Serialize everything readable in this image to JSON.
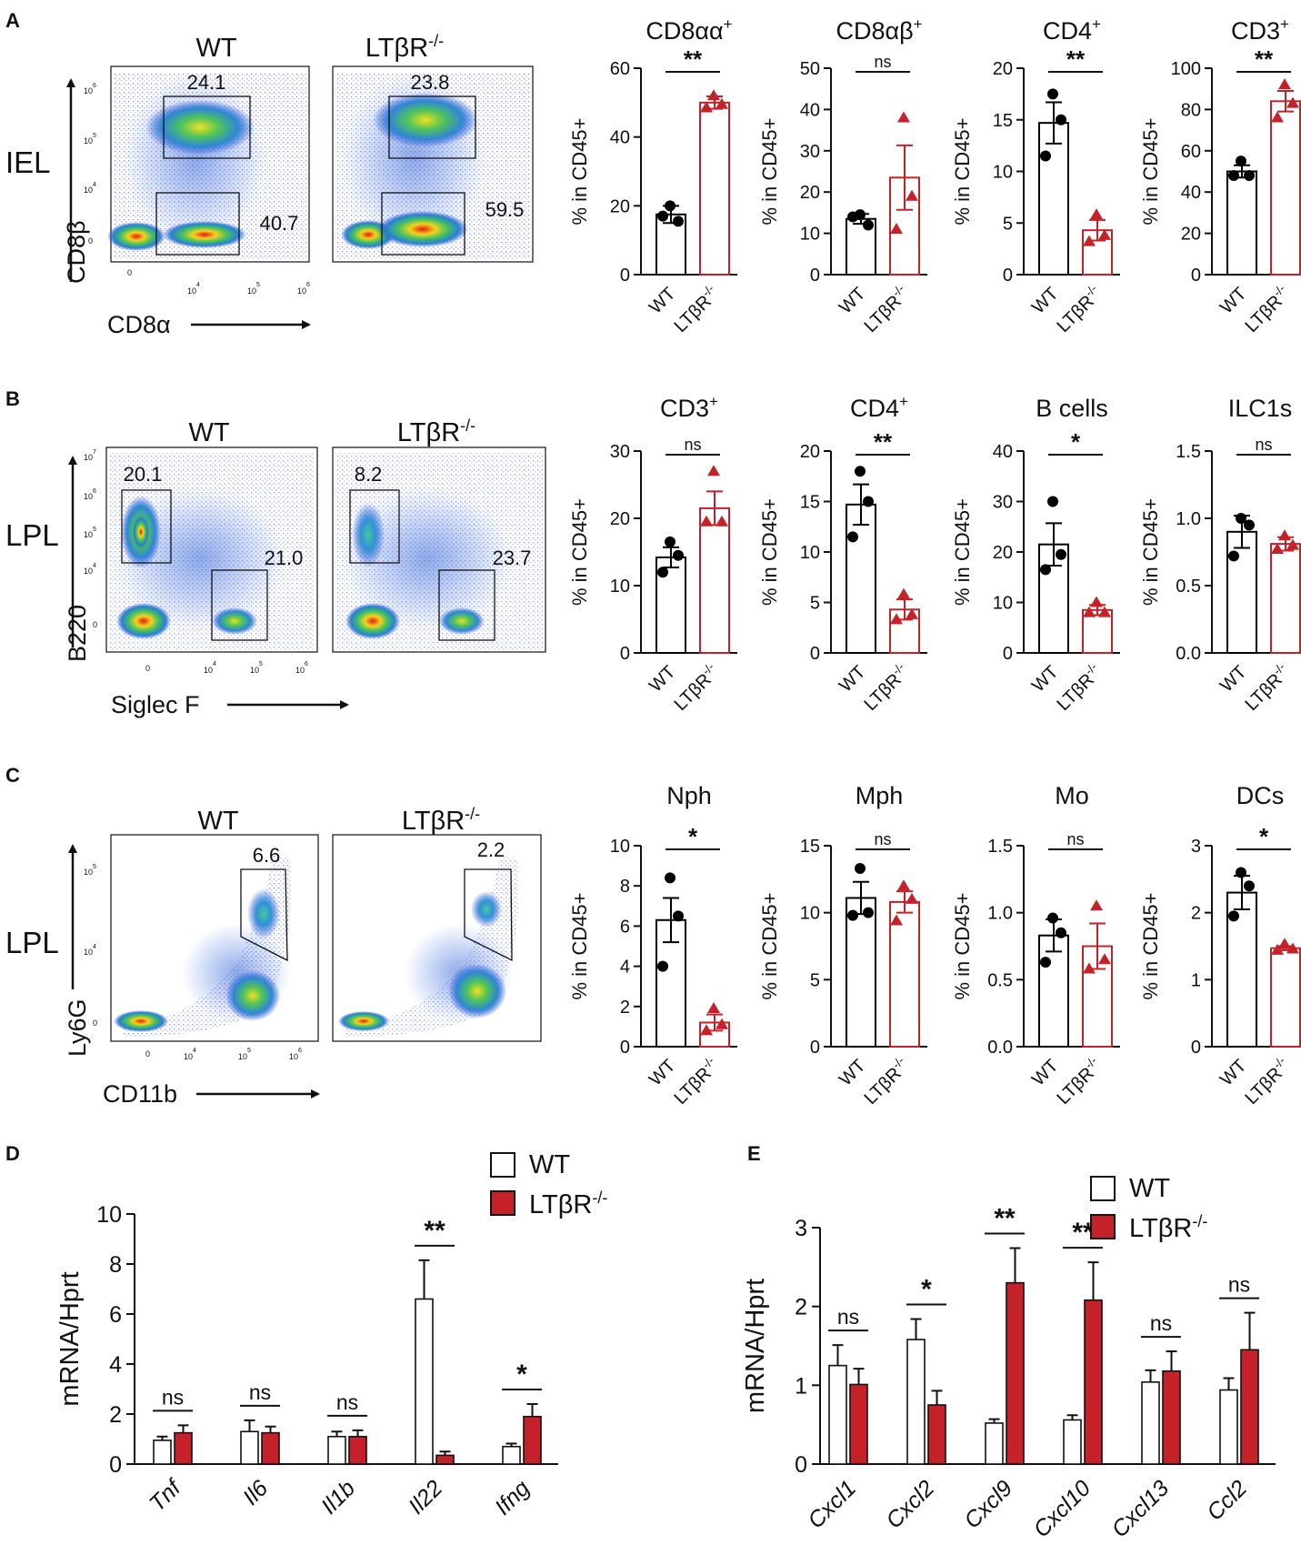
{
  "labels": {
    "wt": "WT",
    "ko": "LTβR",
    "ko_sup": "-/-",
    "pct_ylabel": "% in CD45+",
    "mrna_ylabel": "mRNA/Hprt"
  },
  "colors": {
    "wt": "#000000",
    "ko": "#c42129",
    "ko_fill": "#c42129"
  },
  "panels": [
    {
      "letter": "A",
      "tissue": "IEL",
      "xaxis": "CD8α",
      "yaxis": "CD8β",
      "gates": [
        {
          "sample": "WT",
          "values": [
            "24.1",
            "40.7"
          ]
        },
        {
          "sample": "LTβR-/-",
          "values": [
            "23.8",
            "59.5"
          ]
        }
      ],
      "ticks_x": [
        "0",
        "10",
        "10",
        "10"
      ],
      "ticks_x_exp": [
        "",
        "4",
        "5",
        "6"
      ],
      "ticks_y": [
        "0",
        "10",
        "10",
        "10"
      ],
      "ticks_y_exp": [
        "",
        "4",
        "5",
        "6"
      ]
    },
    {
      "letter": "B",
      "tissue": "LPL",
      "xaxis": "Siglec F",
      "yaxis": "B220",
      "gates": [
        {
          "sample": "WT",
          "values": [
            "20.1",
            "21.0"
          ]
        },
        {
          "sample": "LTβR-/-",
          "values": [
            "8.2",
            "23.7"
          ]
        }
      ],
      "ticks_x": [
        "0",
        "10",
        "10",
        "10"
      ],
      "ticks_x_exp": [
        "",
        "4",
        "5",
        "6"
      ],
      "ticks_y": [
        "0",
        "10",
        "10",
        "10",
        "10"
      ],
      "ticks_y_exp": [
        "",
        "4",
        "5",
        "6",
        "7"
      ]
    },
    {
      "letter": "C",
      "tissue": "LPL",
      "xaxis": "CD11b",
      "yaxis": "Ly6G",
      "gates": [
        {
          "sample": "WT",
          "values": [
            "6.6"
          ]
        },
        {
          "sample": "LTβR-/-",
          "values": [
            "2.2"
          ]
        }
      ],
      "ticks_x": [
        "0",
        "10",
        "10",
        "10"
      ],
      "ticks_x_exp": [
        "",
        "4",
        "5",
        "6"
      ],
      "ticks_y": [
        "0",
        "10",
        "10"
      ],
      "ticks_y_exp": [
        "",
        "4",
        "5"
      ]
    },
    {
      "letter": "D"
    },
    {
      "letter": "E"
    }
  ],
  "chart_data": [
    {
      "type": "scatter",
      "panel": "A",
      "title": "CD8αα",
      "title_sup": "+",
      "ylabel": "% in CD45+",
      "ylim": [
        0,
        60
      ],
      "yticks": [
        0,
        20,
        40,
        60
      ],
      "sig": "**",
      "groups": [
        {
          "name": "WT",
          "mean": 17.5,
          "sem": 2.5,
          "points": [
            20,
            15.5,
            17
          ]
        },
        {
          "name": "LTβR-/-",
          "mean": 50,
          "sem": 1.8,
          "points": [
            52,
            49.5,
            48.5
          ]
        }
      ]
    },
    {
      "type": "scatter",
      "panel": "A",
      "title": "CD8αβ",
      "title_sup": "+",
      "ylabel": "% in CD45+",
      "ylim": [
        0,
        50
      ],
      "yticks": [
        0,
        10,
        20,
        30,
        40,
        50
      ],
      "sig": "ns",
      "groups": [
        {
          "name": "WT",
          "mean": 13.5,
          "sem": 1.2,
          "points": [
            14.5,
            12,
            14
          ]
        },
        {
          "name": "LTβR-/-",
          "mean": 23.5,
          "sem": 7.8,
          "points": [
            38,
            19,
            11
          ]
        }
      ]
    },
    {
      "type": "scatter",
      "panel": "A",
      "title": "CD4",
      "title_sup": "+",
      "ylabel": "% in CD45+",
      "ylim": [
        0,
        20
      ],
      "yticks": [
        0,
        5,
        10,
        15,
        20
      ],
      "sig": "**",
      "groups": [
        {
          "name": "WT",
          "mean": 14.7,
          "sem": 2,
          "points": [
            17.5,
            15,
            11.5
          ]
        },
        {
          "name": "LTβR-/-",
          "mean": 4.3,
          "sem": 1,
          "points": [
            5.8,
            3.8,
            3.2
          ]
        }
      ]
    },
    {
      "type": "scatter",
      "panel": "A",
      "title": "CD3",
      "title_sup": "+",
      "ylabel": "% in CD45+",
      "ylim": [
        0,
        100
      ],
      "yticks": [
        0,
        20,
        40,
        60,
        80,
        100
      ],
      "sig": "**",
      "groups": [
        {
          "name": "WT",
          "mean": 50,
          "sem": 3,
          "points": [
            55,
            48,
            48
          ]
        },
        {
          "name": "LTβR-/-",
          "mean": 84,
          "sem": 5,
          "points": [
            92,
            83,
            76
          ]
        }
      ]
    },
    {
      "type": "scatter",
      "panel": "B",
      "title": "CD3",
      "title_sup": "+",
      "ylabel": "% in CD45+",
      "ylim": [
        0,
        30
      ],
      "yticks": [
        0,
        10,
        20,
        30
      ],
      "sig": "ns",
      "groups": [
        {
          "name": "WT",
          "mean": 14.2,
          "sem": 1.5,
          "points": [
            16.5,
            14.5,
            12
          ]
        },
        {
          "name": "LTβR-/-",
          "mean": 21.5,
          "sem": 2.5,
          "points": [
            27,
            19.5,
            19.5
          ]
        }
      ]
    },
    {
      "type": "scatter",
      "panel": "B",
      "title": "CD4",
      "title_sup": "+",
      "ylabel": "% in CD45+",
      "ylim": [
        0,
        20
      ],
      "yticks": [
        0,
        5,
        10,
        15,
        20
      ],
      "sig": "**",
      "groups": [
        {
          "name": "WT",
          "mean": 14.7,
          "sem": 2,
          "points": [
            18,
            15,
            11.5
          ]
        },
        {
          "name": "LTβR-/-",
          "mean": 4.3,
          "sem": 1,
          "points": [
            5.8,
            3.8,
            3.3
          ]
        }
      ]
    },
    {
      "type": "scatter",
      "panel": "B",
      "title": "B cells",
      "title_sup": "",
      "ylabel": "% in CD45+",
      "ylim": [
        0,
        40
      ],
      "yticks": [
        0,
        10,
        20,
        30,
        40
      ],
      "sig": "*",
      "groups": [
        {
          "name": "WT",
          "mean": 21.5,
          "sem": 4.2,
          "points": [
            30,
            19.5,
            16.5
          ]
        },
        {
          "name": "LTβR-/-",
          "mean": 8.5,
          "sem": 1,
          "points": [
            10,
            8,
            8
          ]
        }
      ]
    },
    {
      "type": "scatter",
      "panel": "B",
      "title": "ILC1s",
      "title_sup": "",
      "ylabel": "% in CD45+",
      "ylim": [
        0,
        1.5
      ],
      "yticks": [
        0.0,
        0.5,
        1.0,
        1.5
      ],
      "sig": "ns",
      "groups": [
        {
          "name": "WT",
          "mean": 0.9,
          "sem": 0.12,
          "points": [
            1.0,
            0.95,
            0.72
          ]
        },
        {
          "name": "LTβR-/-",
          "mean": 0.81,
          "sem": 0.05,
          "points": [
            0.87,
            0.8,
            0.77
          ]
        }
      ]
    },
    {
      "type": "scatter",
      "panel": "C",
      "title": "Nph",
      "title_sup": "",
      "ylabel": "% in CD45+",
      "ylim": [
        0,
        10
      ],
      "yticks": [
        0,
        2,
        4,
        6,
        8,
        10
      ],
      "sig": "*",
      "groups": [
        {
          "name": "WT",
          "mean": 6.3,
          "sem": 1.1,
          "points": [
            8.4,
            6.5,
            4
          ]
        },
        {
          "name": "LTβR-/-",
          "mean": 1.2,
          "sem": 0.4,
          "points": [
            1.9,
            1.1,
            0.8
          ]
        }
      ]
    },
    {
      "type": "scatter",
      "panel": "C",
      "title": "Mph",
      "title_sup": "",
      "ylabel": "% in CD45+",
      "ylim": [
        0,
        15
      ],
      "yticks": [
        0,
        5,
        10,
        15
      ],
      "sig": "ns",
      "groups": [
        {
          "name": "WT",
          "mean": 11.1,
          "sem": 1.2,
          "points": [
            13.3,
            10,
            9.8
          ]
        },
        {
          "name": "LTβR-/-",
          "mean": 10.8,
          "sem": 0.8,
          "points": [
            12,
            11,
            9.4
          ]
        }
      ]
    },
    {
      "type": "scatter",
      "panel": "C",
      "title": "Mo",
      "title_sup": "",
      "ylabel": "% in CD45+",
      "ylim": [
        0,
        1.5
      ],
      "yticks": [
        0.0,
        0.5,
        1.0,
        1.5
      ],
      "sig": "ns",
      "groups": [
        {
          "name": "WT",
          "mean": 0.83,
          "sem": 0.12,
          "points": [
            0.96,
            0.85,
            0.63
          ]
        },
        {
          "name": "LTβR-/-",
          "mean": 0.75,
          "sem": 0.17,
          "points": [
            1.05,
            0.65,
            0.58
          ]
        }
      ]
    },
    {
      "type": "scatter",
      "panel": "C",
      "title": "DCs",
      "title_sup": "",
      "ylabel": "% in CD45+",
      "ylim": [
        0,
        3
      ],
      "yticks": [
        0,
        1,
        2,
        3
      ],
      "sig": "*",
      "groups": [
        {
          "name": "WT",
          "mean": 2.3,
          "sem": 0.25,
          "points": [
            2.6,
            2.4,
            1.95
          ]
        },
        {
          "name": "LTβR-/-",
          "mean": 1.47,
          "sem": 0.03,
          "points": [
            1.53,
            1.46,
            1.44
          ]
        }
      ]
    },
    {
      "type": "bar",
      "panel": "D",
      "ylabel": "mRNA/Hprt",
      "ylim": [
        0,
        10
      ],
      "yticks": [
        0,
        2,
        4,
        6,
        8,
        10
      ],
      "legend": [
        "WT",
        "LTβR-/-"
      ],
      "categories": [
        "Tnf",
        "Il6",
        "Il1b",
        "Il22",
        "Ifng"
      ],
      "series": [
        {
          "name": "WT",
          "values": [
            0.95,
            1.3,
            1.1,
            6.6,
            0.7
          ],
          "errors": [
            0.15,
            0.45,
            0.2,
            1.55,
            0.12
          ]
        },
        {
          "name": "LTβR-/-",
          "values": [
            1.25,
            1.25,
            1.1,
            0.35,
            1.9
          ],
          "errors": [
            0.3,
            0.25,
            0.25,
            0.15,
            0.5
          ]
        }
      ],
      "sig": [
        "ns",
        "ns",
        "ns",
        "**",
        "*"
      ]
    },
    {
      "type": "bar",
      "panel": "E",
      "ylabel": "mRNA/Hprt",
      "ylim": [
        0,
        3
      ],
      "yticks": [
        0,
        1,
        2,
        3
      ],
      "legend": [
        "WT",
        "LTβR-/-"
      ],
      "categories": [
        "Cxcl1",
        "Cxcl2",
        "Cxcl9",
        "Cxcl10",
        "Cxcl13",
        "Ccl2"
      ],
      "series": [
        {
          "name": "WT",
          "values": [
            1.25,
            1.58,
            0.52,
            0.56,
            1.04,
            0.94
          ],
          "errors": [
            0.26,
            0.26,
            0.05,
            0.06,
            0.15,
            0.15
          ]
        },
        {
          "name": "LTβR-/-",
          "values": [
            1.01,
            0.75,
            2.3,
            2.08,
            1.18,
            1.45
          ],
          "errors": [
            0.2,
            0.18,
            0.44,
            0.48,
            0.25,
            0.47
          ]
        }
      ],
      "sig": [
        "ns",
        "*",
        "**",
        "**",
        "ns",
        "ns"
      ]
    }
  ]
}
